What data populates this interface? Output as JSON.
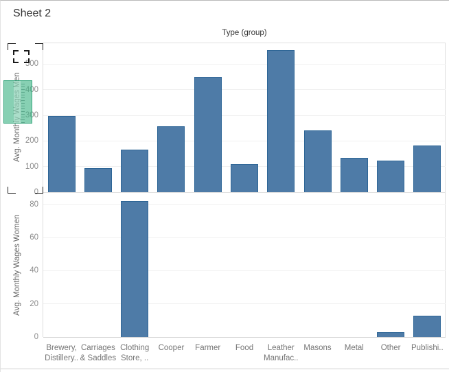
{
  "title": "Sheet 2",
  "column_header": "Type (group)",
  "colors": {
    "bar_fill": "#4e7ba7",
    "bar_border": "#2d6596",
    "grid_line": "#f0f0f0",
    "pane_border": "#e0e0e0",
    "tick_label": "#8c8c8c",
    "axis_title": "#686868",
    "category_label": "#757575",
    "title_text": "#323232",
    "axis_highlight": "#3eb385",
    "marquee": "#1a1a1a"
  },
  "chart_data": [
    {
      "type": "bar",
      "title": "Type (group)",
      "ylabel": "Avg. Monthly Wages Men",
      "categories": [
        "Brewery,\nDistillery..",
        "Carriages\n& Saddles",
        "Clothing\nStore, ..",
        "Cooper",
        "Farmer",
        "Food",
        "Leather\nManufac..",
        "Masons",
        "Metal",
        "Other",
        "Publishi.."
      ],
      "values": [
        298,
        93,
        165,
        258,
        450,
        110,
        555,
        242,
        133,
        124,
        182
      ],
      "yticks": [
        0,
        100,
        200,
        300,
        400,
        500
      ],
      "ylim": [
        0,
        584
      ],
      "grid": true,
      "legend": false
    },
    {
      "type": "bar",
      "title": "",
      "ylabel": "Avg. Monthly Wages Women",
      "categories": [
        "Brewery,\nDistillery..",
        "Carriages\n& Saddles",
        "Clothing\nStore, ..",
        "Cooper",
        "Farmer",
        "Food",
        "Leather\nManufac..",
        "Masons",
        "Metal",
        "Other",
        "Publishi.."
      ],
      "values": [
        0,
        0,
        82,
        0,
        0,
        0,
        0,
        0,
        0,
        3,
        13
      ],
      "yticks": [
        0,
        20,
        40,
        60,
        80
      ],
      "ylim": [
        0,
        87
      ],
      "grid": true,
      "legend": false
    }
  ]
}
